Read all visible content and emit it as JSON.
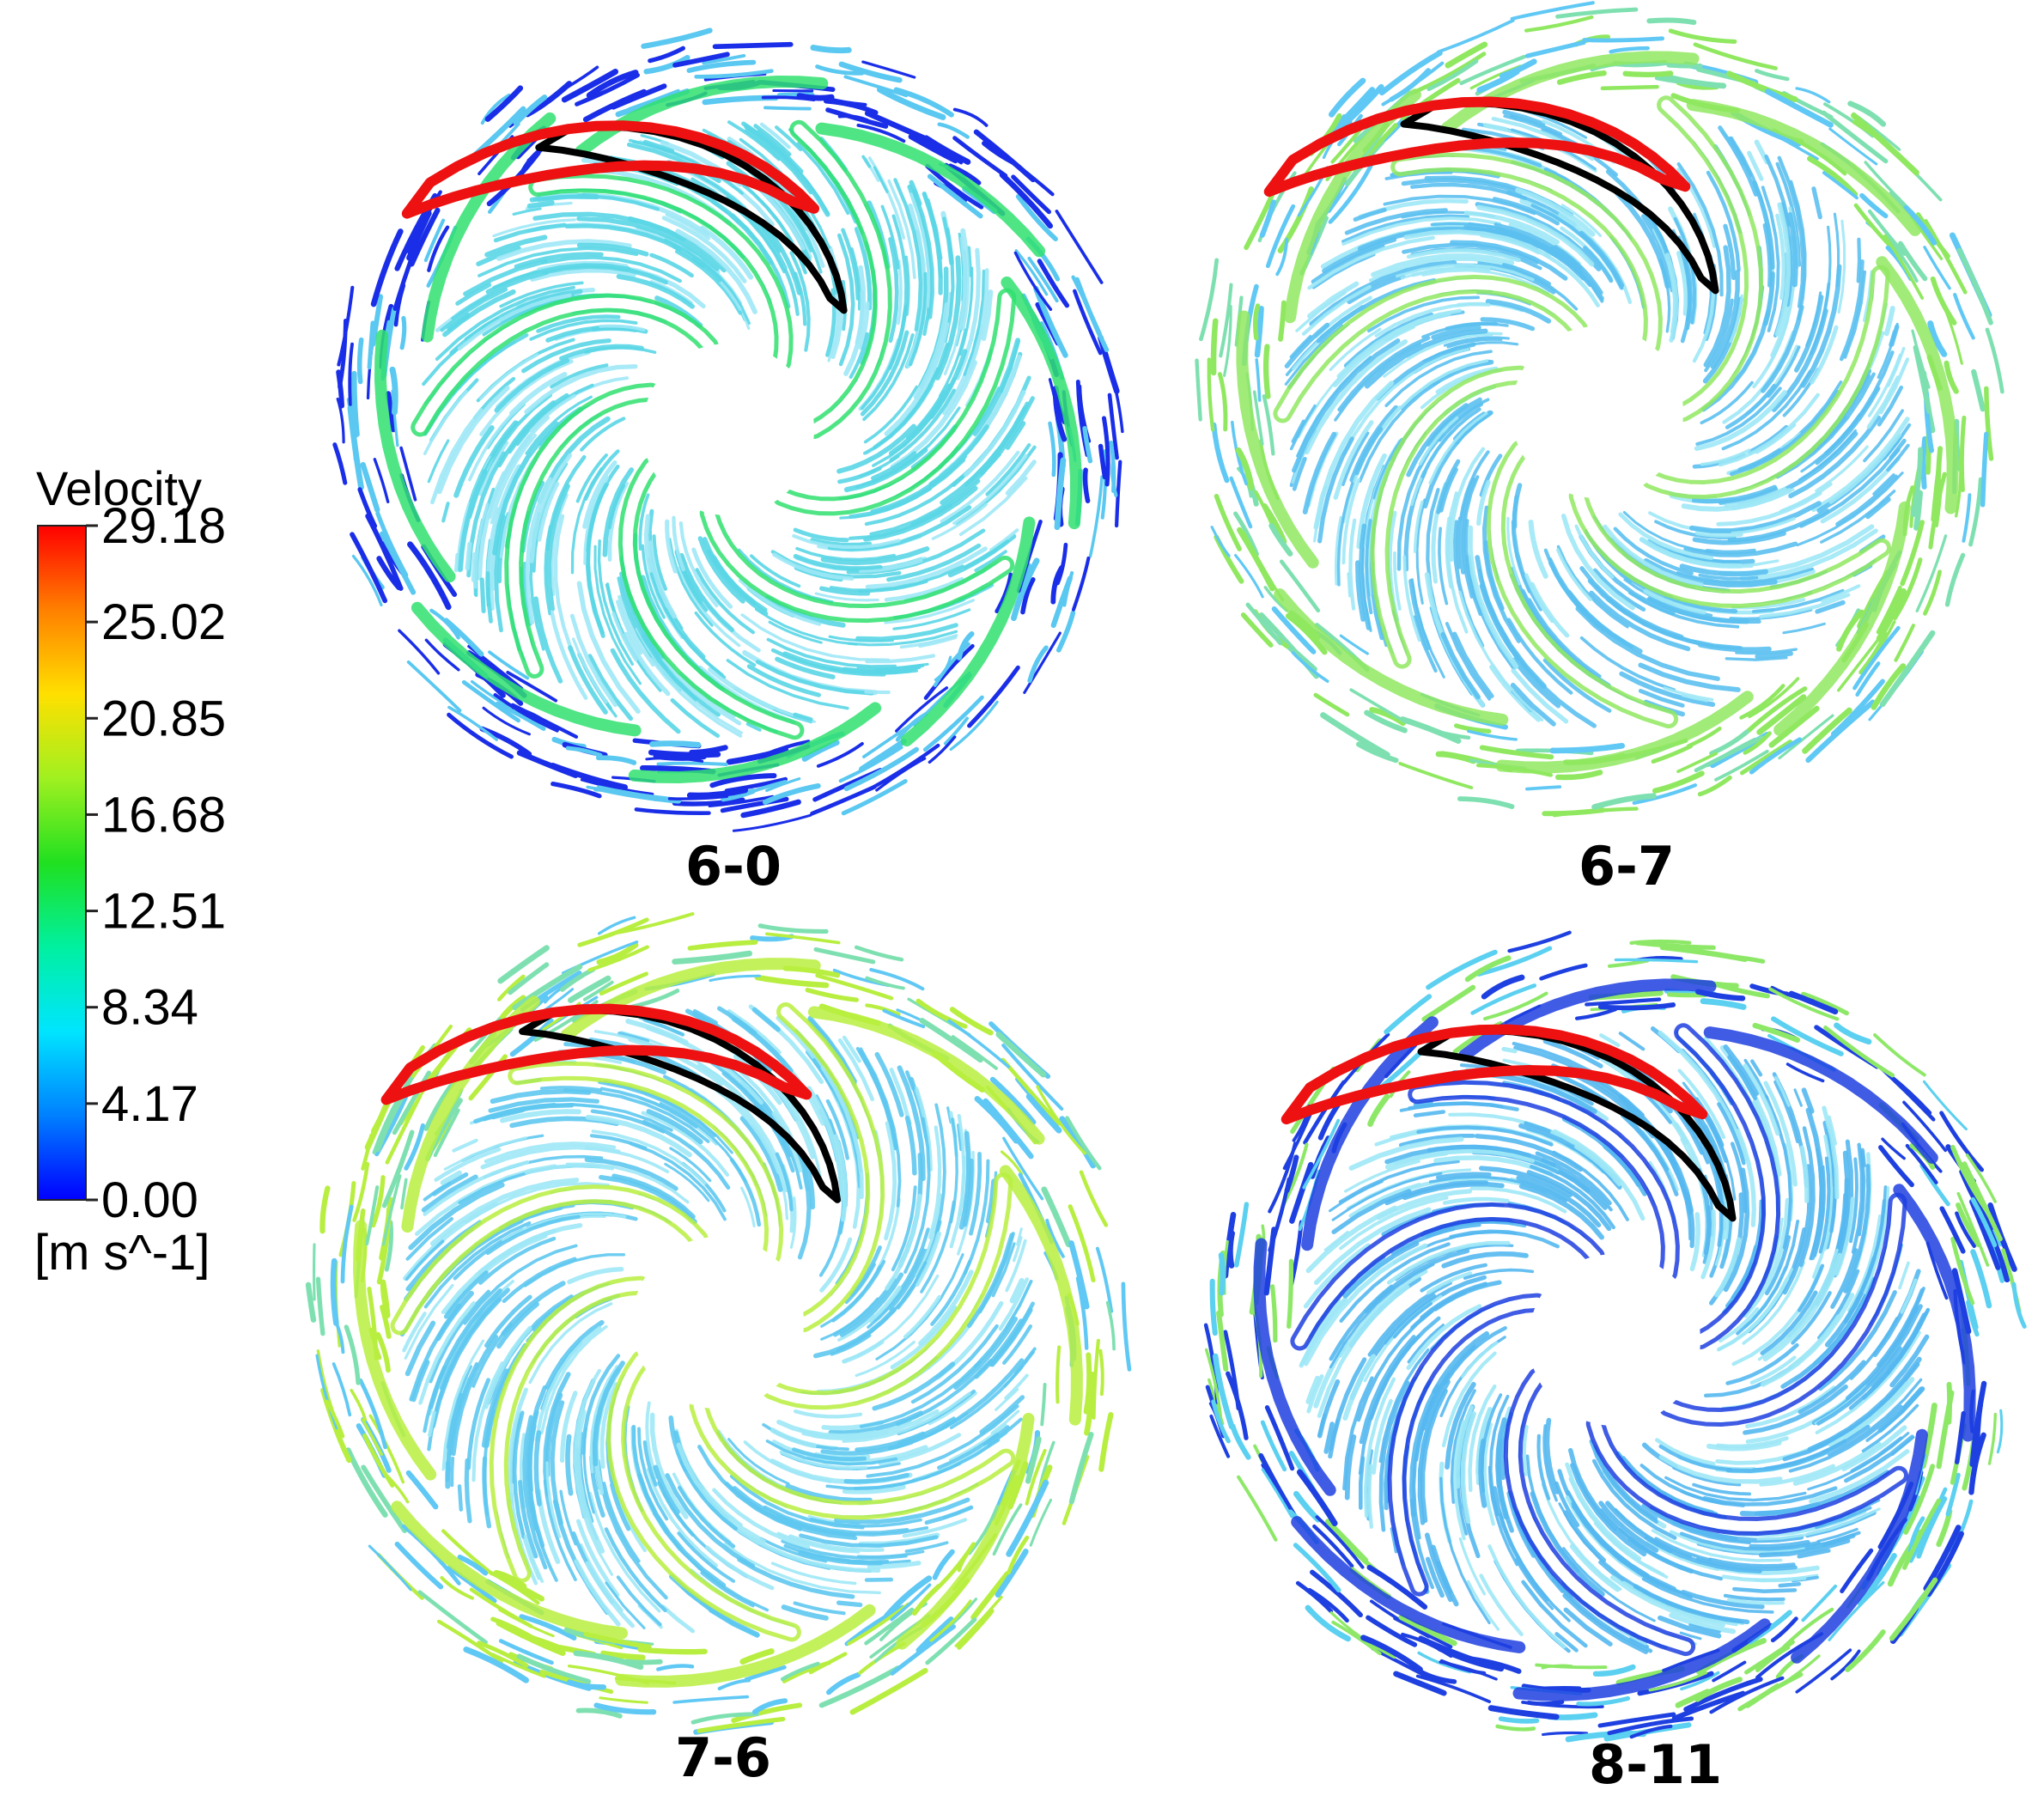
{
  "legend": {
    "title": "Velocity",
    "unit": "[m s^-1]",
    "ticks": [
      "29.18",
      "25.02",
      "20.85",
      "16.68",
      "12.51",
      "8.34",
      "4.17",
      "0.00"
    ],
    "colorscale": [
      "#0000ff",
      "#0080ff",
      "#00e5ff",
      "#00ff80",
      "#20e020",
      "#d0ff20",
      "#ffd000",
      "#ff6000",
      "#ff0000"
    ]
  },
  "panels": [
    {
      "label": "6-0",
      "base_color": "#5ad6e6",
      "band_color": "#30e070",
      "outer_style": "vortex"
    },
    {
      "label": "6-7",
      "base_color": "#5bc0f0",
      "band_color": "#90e860",
      "outer_style": "band"
    },
    {
      "label": "7-6",
      "base_color": "#5ec8f0",
      "band_color": "#b8ee40",
      "outer_style": "band"
    },
    {
      "label": "8-11",
      "base_color": "#55b8f0",
      "band_color": "#1e40e0",
      "outer_style": "vortex-band"
    }
  ],
  "blade_colors": {
    "highlight_red": "#ee1111",
    "highlight_black": "#000000"
  }
}
